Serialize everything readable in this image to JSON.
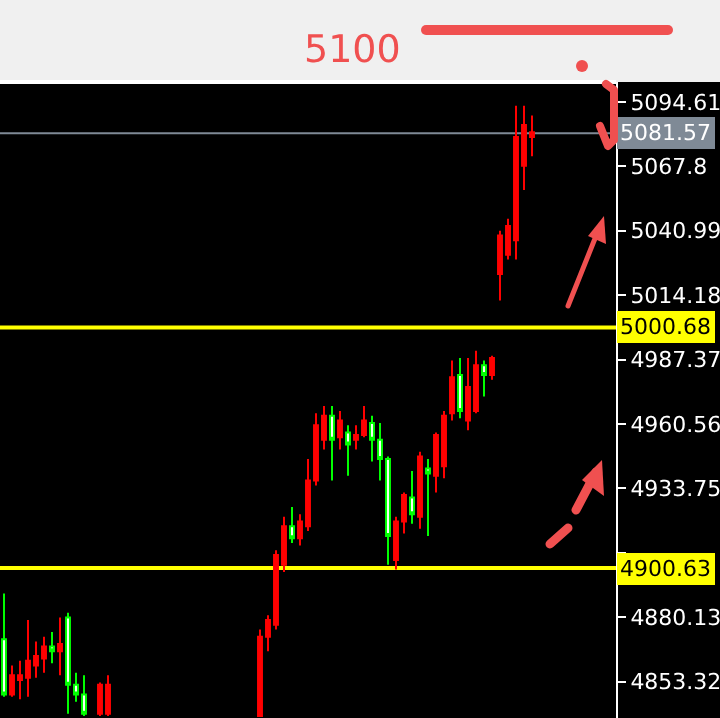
{
  "chart_data": {
    "type": "candlestick",
    "categories": [
      null,
      null,
      null,
      null,
      null,
      null,
      null,
      null,
      null,
      null,
      null,
      null,
      null,
      null,
      null,
      null,
      null,
      null,
      null,
      null,
      null,
      null,
      null,
      null,
      null,
      null,
      null,
      null,
      null,
      null,
      null,
      null,
      null,
      null,
      null,
      null,
      null,
      null,
      null,
      null,
      null,
      null,
      null,
      null,
      null,
      null,
      null,
      null,
      null,
      null,
      null,
      null,
      null,
      null,
      null,
      null,
      null,
      null,
      null,
      null,
      null,
      null,
      null,
      null,
      null,
      null,
      null,
      null,
      null,
      null,
      null,
      null,
      null,
      null,
      null,
      null,
      null
    ],
    "ohlc": [
      [
        4871,
        4890,
        4847,
        4848
      ],
      [
        4848,
        4860,
        4847,
        4856
      ],
      [
        4854,
        4862,
        4846,
        4856
      ],
      [
        4855,
        4879,
        4847,
        4862
      ],
      [
        4860,
        4870,
        4855,
        4864
      ],
      [
        4863,
        4872,
        4857,
        4868
      ],
      [
        4868,
        4874,
        4861,
        4866
      ],
      [
        4866,
        4880,
        4856,
        4869
      ],
      [
        4880,
        4882,
        4840,
        4852
      ],
      [
        4852,
        4857,
        4845,
        4848
      ],
      [
        4848,
        4856,
        4839,
        4840
      ],
      null,
      [
        4840,
        4853,
        4839,
        4852
      ],
      [
        4840,
        4856,
        4839,
        4852
      ],
      null,
      null,
      null,
      null,
      null,
      null,
      null,
      null,
      null,
      null,
      null,
      null,
      null,
      null,
      null,
      null,
      null,
      null,
      [
        4839,
        4875,
        4839,
        4872
      ],
      [
        4872,
        4881,
        4866,
        4879
      ],
      [
        4877,
        4908,
        4875,
        4906
      ],
      [
        4902,
        4922,
        4899,
        4918
      ],
      [
        4918,
        4926,
        4911,
        4913
      ],
      [
        4913,
        4923,
        4910,
        4920
      ],
      [
        4918,
        4946,
        4916,
        4937
      ],
      [
        4937,
        4965,
        4935,
        4960
      ],
      [
        4954,
        4968,
        4950,
        4964
      ],
      [
        4964,
        4968,
        4937,
        4954
      ],
      [
        4955,
        4966,
        4950,
        4962
      ],
      [
        4957,
        4960,
        4939,
        4952
      ],
      [
        4954,
        4960,
        4950,
        4956
      ],
      [
        4956,
        4968,
        4955,
        4962
      ],
      [
        4961,
        4964,
        4945,
        4954
      ],
      [
        4954,
        4961,
        4937,
        4946
      ],
      [
        4946,
        4947,
        4902,
        4914
      ],
      [
        4904,
        4922,
        4900,
        4920
      ],
      [
        4920,
        4932,
        4915,
        4931
      ],
      [
        4930,
        4941,
        4919,
        4923
      ],
      [
        4922,
        4949,
        4917,
        4947
      ],
      [
        4942,
        4946,
        4914,
        4940
      ],
      [
        4939,
        4957,
        4932,
        4956
      ],
      [
        4943,
        4966,
        4938,
        4964
      ],
      [
        4965,
        4987,
        4962,
        4980
      ],
      [
        4981,
        4988,
        4963,
        4966
      ],
      [
        4962,
        4988,
        4958,
        4976
      ],
      [
        4966,
        4991,
        4965,
        4985
      ],
      [
        4985,
        4987,
        4972,
        4981
      ],
      [
        4981,
        4989,
        4979,
        4988
      ],
      [
        5023,
        5041,
        5012,
        5039
      ],
      [
        5031,
        5046,
        5029,
        5043
      ],
      [
        5037,
        5093,
        5029,
        5080
      ],
      [
        5068,
        5093,
        5058,
        5085
      ],
      [
        5080,
        5089,
        5072,
        5082
      ],
      null,
      null,
      null,
      null,
      null,
      null,
      null,
      null,
      null,
      null
    ],
    "ylim": [
      4838.2,
      5102.9
    ],
    "yticks": [
      4853.32,
      4880.13,
      {
        "value": 4906.94,
        "label": null
      },
      4933.75,
      4960.56,
      4987.37,
      5014.18,
      5040.99,
      5067.8,
      5094.61
    ],
    "ref_lines": [
      {
        "axis": "y",
        "value": 5000.68,
        "label": "5000.68",
        "color": "#ffff00"
      },
      {
        "axis": "y",
        "value": 4900.63,
        "label": "4900.63",
        "color": "#ffff00"
      },
      {
        "axis": "y",
        "value": 5081.57,
        "label": "5081.57",
        "color": "#7f8a96"
      }
    ],
    "annotations": [
      "5100"
    ],
    "tick_labels": "y",
    "grid": false
  }
}
